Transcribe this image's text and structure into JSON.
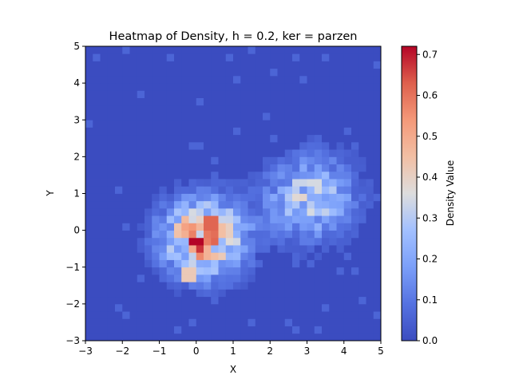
{
  "chart_data": {
    "type": "heatmap",
    "title": "Heatmap of Density, h = 0.2, ker = parzen",
    "xlabel": "X",
    "ylabel": "Y",
    "xlim": [
      -3,
      5
    ],
    "ylim": [
      -3,
      5
    ],
    "xticks": [
      "−3",
      "−2",
      "−1",
      "0",
      "1",
      "2",
      "3",
      "4",
      "5"
    ],
    "yticks": [
      "−3",
      "−2",
      "−1",
      "0",
      "1",
      "2",
      "3",
      "4",
      "5"
    ],
    "colorbar": {
      "label": "Density Value",
      "min": 0.0,
      "max": 0.72,
      "ticks": [
        "0.0",
        "0.1",
        "0.2",
        "0.3",
        "0.4",
        "0.5",
        "0.6",
        "0.7"
      ],
      "colormap": "coolwarm"
    },
    "grid_resolution": [
      40,
      40
    ],
    "clusters": [
      {
        "center": [
          0.2,
          -0.2
        ],
        "sigma": [
          0.75,
          0.7
        ],
        "peak": 0.52
      },
      {
        "center": [
          3.1,
          0.9
        ],
        "sigma": [
          0.8,
          0.75
        ],
        "peak": 0.3
      }
    ],
    "hotspots": [
      {
        "x": 0.0,
        "y": -0.35,
        "value": 0.72
      },
      {
        "x": 0.4,
        "y": 0.25,
        "value": 0.62
      },
      {
        "x": -0.3,
        "y": 0.15,
        "value": 0.5
      },
      {
        "x": 0.2,
        "y": -0.55,
        "value": 0.48
      },
      {
        "x": -0.2,
        "y": -1.15,
        "value": 0.42
      },
      {
        "x": 0.6,
        "y": 0.0,
        "value": 0.45
      }
    ],
    "grid": false
  }
}
